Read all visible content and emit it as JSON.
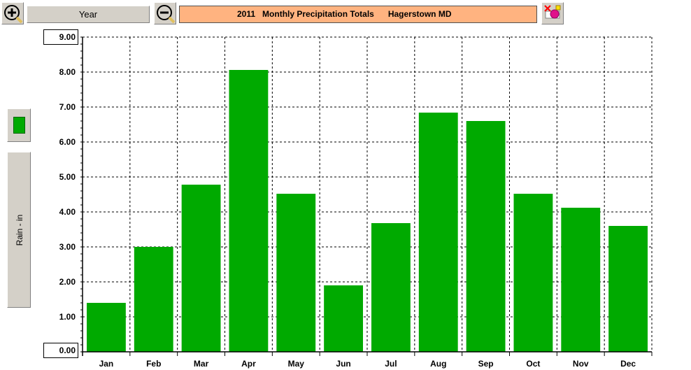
{
  "toolbar": {
    "zoom_in_icon": "zoom-in-icon",
    "zoom_out_icon": "zoom-out-icon",
    "period_label": "Year",
    "title": "2011   Monthly Precipitation Totals      Hagerstown MD",
    "print_icon": "print-icon"
  },
  "sidebar": {
    "axis_label": "Rain - in"
  },
  "colors": {
    "bar": "#00aa00",
    "title_background": "#ffb380"
  },
  "chart_data": {
    "type": "bar",
    "title": "2011   Monthly Precipitation Totals      Hagerstown MD",
    "xlabel": "",
    "ylabel": "Rain - in",
    "categories": [
      "Jan",
      "Feb",
      "Mar",
      "Apr",
      "May",
      "Jun",
      "Jul",
      "Aug",
      "Sep",
      "Oct",
      "Nov",
      "Dec"
    ],
    "values": [
      1.4,
      3.0,
      4.78,
      8.06,
      4.52,
      1.9,
      3.68,
      6.84,
      6.6,
      4.52,
      4.12,
      3.6
    ],
    "ylim": [
      0,
      9
    ],
    "yticks": [
      "0.00",
      "1.00",
      "2.00",
      "3.00",
      "4.00",
      "5.00",
      "6.00",
      "7.00",
      "8.00",
      "9.00"
    ],
    "grid": true,
    "bar_color": "#00aa00"
  }
}
